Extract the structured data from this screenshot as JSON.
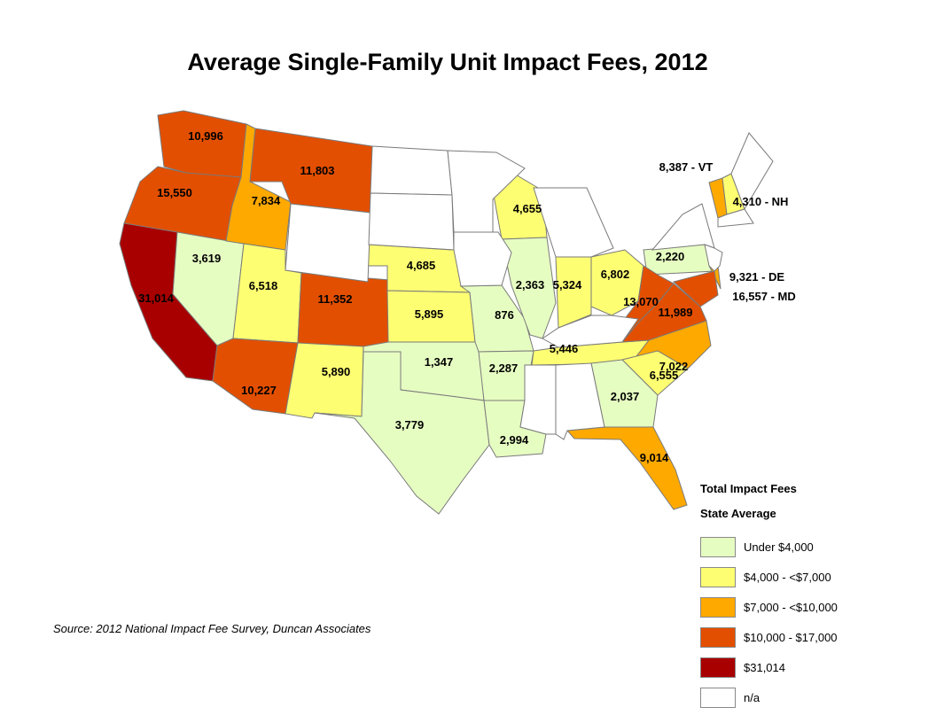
{
  "title": "Average Single-Family Unit Impact Fees, 2012",
  "source": "Source: 2012 National Impact Fee Survey, Duncan Associates",
  "legend": {
    "title": "Total Impact Fees",
    "subtitle": "State Average",
    "classes": [
      {
        "label": "Under $4,000",
        "color": "#e6fdc2"
      },
      {
        "label": "$4,000 - <$7,000",
        "color": "#fefe73"
      },
      {
        "label": "$7,000 - <$10,000",
        "color": "#fea900"
      },
      {
        "label": "$10,000 - $17,000",
        "color": "#e34f00"
      },
      {
        "label": "$31,014",
        "color": "#a80000"
      },
      {
        "label": "n/a",
        "color": "#ffffff"
      }
    ]
  },
  "states": [
    {
      "state": "WA",
      "value": "10,996",
      "class": 3
    },
    {
      "state": "OR",
      "value": "15,550",
      "class": 3
    },
    {
      "state": "CA",
      "value": "31,014",
      "class": 4
    },
    {
      "state": "NV",
      "value": "3,619",
      "class": 0
    },
    {
      "state": "ID",
      "value": "7,834",
      "class": 2
    },
    {
      "state": "MT",
      "value": "11,803",
      "class": 3
    },
    {
      "state": "UT",
      "value": "6,518",
      "class": 1
    },
    {
      "state": "CO",
      "value": "11,352",
      "class": 3
    },
    {
      "state": "AZ",
      "value": "10,227",
      "class": 3
    },
    {
      "state": "NM",
      "value": "5,890",
      "class": 1
    },
    {
      "state": "NE",
      "value": "4,685",
      "class": 1
    },
    {
      "state": "KS",
      "value": "5,895",
      "class": 1
    },
    {
      "state": "OK",
      "value": "1,347",
      "class": 0
    },
    {
      "state": "TX",
      "value": "3,779",
      "class": 0
    },
    {
      "state": "MO",
      "value": "876",
      "class": 0
    },
    {
      "state": "AR",
      "value": "2,287",
      "class": 0
    },
    {
      "state": "LA",
      "value": "2,994",
      "class": 0
    },
    {
      "state": "WI",
      "value": "4,655",
      "class": 1
    },
    {
      "state": "IL",
      "value": "2,363",
      "class": 0
    },
    {
      "state": "IN",
      "value": "5,324",
      "class": 1
    },
    {
      "state": "OH",
      "value": "6,802",
      "class": 1
    },
    {
      "state": "TN",
      "value": "5,446",
      "class": 1
    },
    {
      "state": "PA",
      "value": "2,220",
      "class": 0
    },
    {
      "state": "WV",
      "value": "13,070",
      "class": 3
    },
    {
      "state": "VA",
      "value": "11,989",
      "class": 3
    },
    {
      "state": "NC",
      "value": "7,022",
      "class": 2
    },
    {
      "state": "SC",
      "value": "6,555",
      "class": 1
    },
    {
      "state": "GA",
      "value": "2,037",
      "class": 0
    },
    {
      "state": "FL",
      "value": "9,014",
      "class": 2
    },
    {
      "state": "VT",
      "value": "8,387 - VT",
      "class": 2
    },
    {
      "state": "NH",
      "value": "4,310 - NH",
      "class": 1
    },
    {
      "state": "DE",
      "value": "9,321 - DE",
      "class": 2
    },
    {
      "state": "MD",
      "value": "16,557 - MD",
      "class": 3
    },
    {
      "state": "WY",
      "class": 5
    },
    {
      "state": "ND",
      "class": 5
    },
    {
      "state": "SD",
      "class": 5
    },
    {
      "state": "MN",
      "class": 5
    },
    {
      "state": "IA",
      "class": 5
    },
    {
      "state": "MI",
      "class": 5
    },
    {
      "state": "KY",
      "class": 5
    },
    {
      "state": "MS",
      "class": 5
    },
    {
      "state": "AL",
      "class": 5
    },
    {
      "state": "NY",
      "class": 5
    },
    {
      "state": "ME",
      "class": 5
    },
    {
      "state": "NJ",
      "class": 5
    },
    {
      "state": "MA",
      "class": 5
    }
  ]
}
